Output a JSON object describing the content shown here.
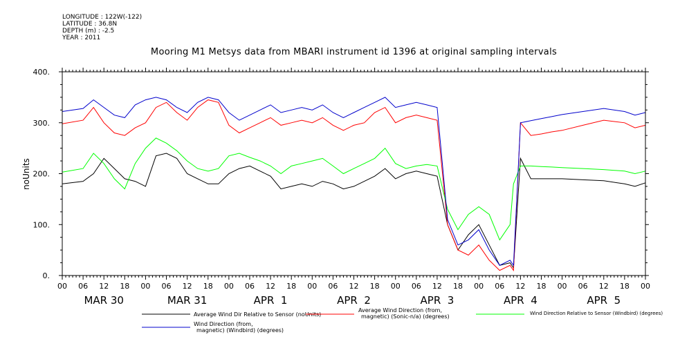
{
  "header_lines": [
    "LONGITUDE : 122W(-122)",
    "LATITUDE : 36.8N",
    "DEPTH (m) : -2.5",
    "YEAR : 2011"
  ],
  "chart_data": {
    "type": "line",
    "title": "Mooring M1 Metsys data from MBARI instrument id 1396 at original sampling intervals",
    "ylabel": "noUnits",
    "xlabel": "",
    "ylim": [
      0,
      400
    ],
    "y_ticks": [
      "0.",
      "100.",
      "200.",
      "300.",
      "400."
    ],
    "y_tick_values": [
      0,
      100,
      200,
      300,
      400
    ],
    "x_range_hours": [
      0,
      168
    ],
    "x_hour_labels": [
      "00",
      "06",
      "12",
      "18",
      "00",
      "06",
      "12",
      "18",
      "00",
      "06",
      "12",
      "18",
      "00",
      "06",
      "12",
      "18",
      "00",
      "06",
      "12",
      "18",
      "00",
      "06",
      "12",
      "18",
      "00",
      "06",
      "12",
      "18",
      "00"
    ],
    "day_labels": [
      "MAR 30",
      "MAR 31",
      "APR  1",
      "APR  2",
      "APR  3",
      "APR  4",
      "APR  5"
    ],
    "legend_position": "bottom",
    "grid": false,
    "series": [
      {
        "name": "Average Wind Dir Relative to Sensor (noUnits)",
        "color": "#000000",
        "points": [
          [
            0,
            180
          ],
          [
            6,
            185
          ],
          [
            9,
            200
          ],
          [
            12,
            230
          ],
          [
            15,
            210
          ],
          [
            18,
            190
          ],
          [
            21,
            185
          ],
          [
            24,
            175
          ],
          [
            27,
            235
          ],
          [
            30,
            240
          ],
          [
            33,
            230
          ],
          [
            36,
            200
          ],
          [
            39,
            190
          ],
          [
            42,
            180
          ],
          [
            45,
            180
          ],
          [
            48,
            200
          ],
          [
            51,
            210
          ],
          [
            54,
            215
          ],
          [
            57,
            205
          ],
          [
            60,
            195
          ],
          [
            63,
            170
          ],
          [
            66,
            175
          ],
          [
            69,
            180
          ],
          [
            72,
            175
          ],
          [
            75,
            185
          ],
          [
            78,
            180
          ],
          [
            81,
            170
          ],
          [
            84,
            175
          ],
          [
            87,
            185
          ],
          [
            90,
            195
          ],
          [
            93,
            210
          ],
          [
            96,
            190
          ],
          [
            99,
            200
          ],
          [
            102,
            205
          ],
          [
            105,
            200
          ],
          [
            108,
            195
          ],
          [
            111,
            100
          ],
          [
            114,
            50
          ],
          [
            117,
            80
          ],
          [
            120,
            100
          ],
          [
            123,
            60
          ],
          [
            126,
            20
          ],
          [
            129,
            25
          ],
          [
            130,
            15
          ],
          [
            132,
            230
          ],
          [
            135,
            190
          ],
          [
            138,
            190
          ],
          [
            141,
            190
          ],
          [
            144,
            190
          ],
          [
            150,
            188
          ],
          [
            156,
            186
          ],
          [
            162,
            180
          ],
          [
            165,
            175
          ],
          [
            168,
            182
          ]
        ]
      },
      {
        "name": "Average Wind Direction (from, magnetic) (Sonic-n/a) (degrees)",
        "color": "#ff0000",
        "points": [
          [
            0,
            298
          ],
          [
            6,
            305
          ],
          [
            9,
            330
          ],
          [
            12,
            300
          ],
          [
            15,
            280
          ],
          [
            18,
            275
          ],
          [
            21,
            290
          ],
          [
            24,
            300
          ],
          [
            27,
            330
          ],
          [
            30,
            340
          ],
          [
            33,
            320
          ],
          [
            36,
            305
          ],
          [
            39,
            330
          ],
          [
            42,
            345
          ],
          [
            45,
            340
          ],
          [
            48,
            295
          ],
          [
            51,
            280
          ],
          [
            54,
            290
          ],
          [
            57,
            300
          ],
          [
            60,
            310
          ],
          [
            63,
            295
          ],
          [
            66,
            300
          ],
          [
            69,
            305
          ],
          [
            72,
            300
          ],
          [
            75,
            310
          ],
          [
            78,
            295
          ],
          [
            81,
            285
          ],
          [
            84,
            295
          ],
          [
            87,
            300
          ],
          [
            90,
            320
          ],
          [
            93,
            330
          ],
          [
            96,
            300
          ],
          [
            99,
            310
          ],
          [
            102,
            315
          ],
          [
            105,
            310
          ],
          [
            108,
            305
          ],
          [
            111,
            100
          ],
          [
            114,
            50
          ],
          [
            117,
            40
          ],
          [
            120,
            60
          ],
          [
            123,
            30
          ],
          [
            126,
            10
          ],
          [
            129,
            20
          ],
          [
            130,
            10
          ],
          [
            132,
            300
          ],
          [
            135,
            275
          ],
          [
            138,
            278
          ],
          [
            141,
            282
          ],
          [
            144,
            285
          ],
          [
            150,
            295
          ],
          [
            156,
            305
          ],
          [
            162,
            300
          ],
          [
            165,
            290
          ],
          [
            168,
            295
          ]
        ]
      },
      {
        "name": "Wind Direction Relative to Sensor (Windbird) (degrees)",
        "color": "#00ff00",
        "points": [
          [
            0,
            203
          ],
          [
            6,
            210
          ],
          [
            9,
            240
          ],
          [
            12,
            220
          ],
          [
            15,
            190
          ],
          [
            18,
            170
          ],
          [
            21,
            220
          ],
          [
            24,
            250
          ],
          [
            27,
            270
          ],
          [
            30,
            260
          ],
          [
            33,
            245
          ],
          [
            36,
            225
          ],
          [
            39,
            210
          ],
          [
            42,
            205
          ],
          [
            45,
            210
          ],
          [
            48,
            235
          ],
          [
            51,
            240
          ],
          [
            54,
            232
          ],
          [
            57,
            225
          ],
          [
            60,
            215
          ],
          [
            63,
            200
          ],
          [
            66,
            215
          ],
          [
            69,
            220
          ],
          [
            72,
            225
          ],
          [
            75,
            230
          ],
          [
            78,
            215
          ],
          [
            81,
            200
          ],
          [
            84,
            210
          ],
          [
            87,
            220
          ],
          [
            90,
            230
          ],
          [
            93,
            250
          ],
          [
            96,
            220
          ],
          [
            99,
            210
          ],
          [
            102,
            215
          ],
          [
            105,
            218
          ],
          [
            108,
            215
          ],
          [
            111,
            130
          ],
          [
            114,
            90
          ],
          [
            117,
            120
          ],
          [
            120,
            135
          ],
          [
            123,
            120
          ],
          [
            126,
            70
          ],
          [
            129,
            100
          ],
          [
            130,
            180
          ],
          [
            132,
            215
          ],
          [
            135,
            215
          ],
          [
            138,
            214
          ],
          [
            141,
            213
          ],
          [
            144,
            212
          ],
          [
            150,
            210
          ],
          [
            156,
            208
          ],
          [
            162,
            205
          ],
          [
            165,
            200
          ],
          [
            168,
            205
          ]
        ]
      },
      {
        "name": "Wind Direction (from, magnetic) (Windbird) (degrees)",
        "color": "#0000cc",
        "points": [
          [
            0,
            322
          ],
          [
            6,
            328
          ],
          [
            9,
            345
          ],
          [
            12,
            330
          ],
          [
            15,
            315
          ],
          [
            18,
            310
          ],
          [
            21,
            335
          ],
          [
            24,
            345
          ],
          [
            27,
            350
          ],
          [
            30,
            345
          ],
          [
            33,
            330
          ],
          [
            36,
            320
          ],
          [
            39,
            340
          ],
          [
            42,
            350
          ],
          [
            45,
            345
          ],
          [
            48,
            320
          ],
          [
            51,
            305
          ],
          [
            54,
            315
          ],
          [
            57,
            325
          ],
          [
            60,
            335
          ],
          [
            63,
            320
          ],
          [
            66,
            325
          ],
          [
            69,
            330
          ],
          [
            72,
            325
          ],
          [
            75,
            335
          ],
          [
            78,
            320
          ],
          [
            81,
            310
          ],
          [
            84,
            320
          ],
          [
            87,
            330
          ],
          [
            90,
            340
          ],
          [
            93,
            350
          ],
          [
            96,
            330
          ],
          [
            99,
            335
          ],
          [
            102,
            340
          ],
          [
            105,
            335
          ],
          [
            108,
            330
          ],
          [
            111,
            110
          ],
          [
            114,
            60
          ],
          [
            117,
            70
          ],
          [
            120,
            90
          ],
          [
            123,
            50
          ],
          [
            126,
            20
          ],
          [
            129,
            30
          ],
          [
            130,
            20
          ],
          [
            132,
            300
          ],
          [
            135,
            304
          ],
          [
            138,
            308
          ],
          [
            141,
            312
          ],
          [
            144,
            316
          ],
          [
            150,
            322
          ],
          [
            156,
            328
          ],
          [
            162,
            322
          ],
          [
            165,
            315
          ],
          [
            168,
            320
          ]
        ]
      }
    ]
  }
}
